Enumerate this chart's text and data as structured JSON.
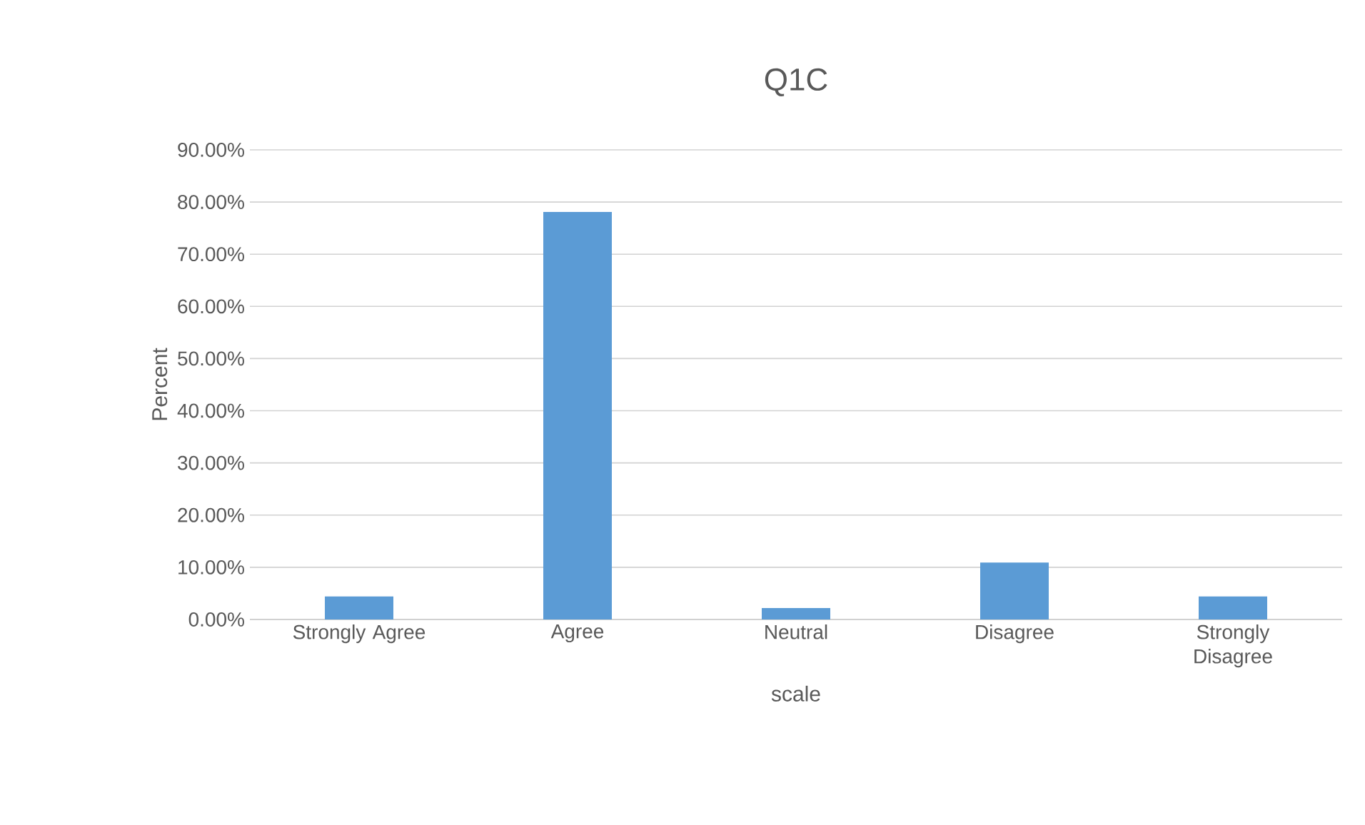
{
  "chart_data": {
    "type": "bar",
    "title": "Q1C",
    "xlabel": "scale",
    "ylabel": "Percent",
    "categories": [
      "Strongly Agree",
      "Agree",
      "Neutral",
      "Disagree",
      "Strongly Disagree"
    ],
    "values": [
      4.4,
      78.1,
      2.2,
      10.9,
      4.4
    ],
    "color": "#5b9bd5",
    "ylim": [
      0,
      90
    ],
    "yticks": [
      {
        "value": 0,
        "label": "0.00%"
      },
      {
        "value": 10,
        "label": "10.00%"
      },
      {
        "value": 20,
        "label": "20.00%"
      },
      {
        "value": 30,
        "label": "30.00%"
      },
      {
        "value": 40,
        "label": "40.00%"
      },
      {
        "value": 50,
        "label": "50.00%"
      },
      {
        "value": 60,
        "label": "60.00%"
      },
      {
        "value": 70,
        "label": "70.00%"
      },
      {
        "value": 80,
        "label": "80.00%"
      },
      {
        "value": 90,
        "label": "90.00%"
      }
    ],
    "grid": "y"
  }
}
